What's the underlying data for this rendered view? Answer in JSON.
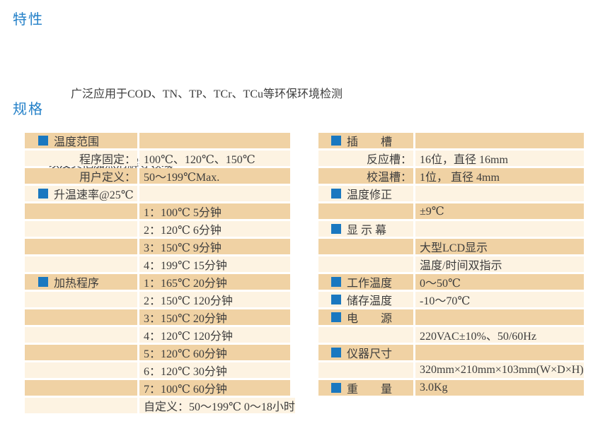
{
  "colors": {
    "row_dark": "#f0d2a4",
    "row_light": "#fdf3e2",
    "bullet_blue": "#1a78c0",
    "heading_blue": "#2380c8",
    "text": "#3d3d3d"
  },
  "features": {
    "title": "特性",
    "lines": [
      "广泛应用于COD、TN、TP、TCr、TCu等环保环境检测",
      "以及其他加热消解等领域"
    ]
  },
  "specs": {
    "title": "规格",
    "left_table": {
      "rows": [
        {
          "kind": "header",
          "label": "温度范围",
          "value": ""
        },
        {
          "kind": "sub",
          "label": "程序固定：",
          "value": "100℃、120℃、150℃"
        },
        {
          "kind": "sub",
          "label": "用户定义：",
          "value": "50～199℃Max."
        },
        {
          "kind": "header",
          "label": "升温速率@25℃",
          "value": ""
        },
        {
          "kind": "plain",
          "label": "",
          "value": "1：100℃ 5分钟"
        },
        {
          "kind": "plain",
          "label": "",
          "value": "2：120℃ 6分钟"
        },
        {
          "kind": "plain",
          "label": "",
          "value": "3：150℃ 9分钟"
        },
        {
          "kind": "plain",
          "label": "",
          "value": "4：199℃ 15分钟"
        },
        {
          "kind": "header",
          "label": "加热程序",
          "value": "1：165℃ 20分钟"
        },
        {
          "kind": "plain",
          "label": "",
          "value": "2：150℃ 120分钟"
        },
        {
          "kind": "plain",
          "label": "",
          "value": "3：150℃ 20分钟"
        },
        {
          "kind": "plain",
          "label": "",
          "value": "4：120℃ 120分钟"
        },
        {
          "kind": "plain",
          "label": "",
          "value": "5：120℃ 60分钟"
        },
        {
          "kind": "plain",
          "label": "",
          "value": "6：120℃ 30分钟"
        },
        {
          "kind": "plain",
          "label": "",
          "value": "7：100℃ 60分钟"
        },
        {
          "kind": "plain",
          "label": "",
          "value": "自定义：50～199℃ 0～18小时"
        }
      ]
    },
    "right_table": {
      "rows": [
        {
          "kind": "header",
          "label": "插　　槽",
          "value": ""
        },
        {
          "kind": "sub",
          "label": "反应槽：",
          "value": "16位，直径 16mm"
        },
        {
          "kind": "sub",
          "label": "校温槽：",
          "value": "1位， 直径 4mm"
        },
        {
          "kind": "header",
          "label": "温度修正",
          "value": ""
        },
        {
          "kind": "plain",
          "label": "",
          "value": "±9℃"
        },
        {
          "kind": "header",
          "label": "显 示 幕",
          "value": ""
        },
        {
          "kind": "plain",
          "label": "",
          "value": "大型LCD显示"
        },
        {
          "kind": "plain",
          "label": "",
          "value": "温度/时间双指示"
        },
        {
          "kind": "header",
          "label": "工作温度",
          "value": "0～50℃"
        },
        {
          "kind": "header",
          "label": "储存温度",
          "value": "-10～70℃"
        },
        {
          "kind": "header",
          "label": "电　　源",
          "value": ""
        },
        {
          "kind": "plain",
          "label": "",
          "value": "220VAC±10%、50/60Hz"
        },
        {
          "kind": "header",
          "label": "仪器尺寸",
          "value": ""
        },
        {
          "kind": "plain",
          "label": "",
          "value": "320mm×210mm×103mm(W×D×H)"
        },
        {
          "kind": "header",
          "label": "重　　量",
          "value": "3.0Kg"
        }
      ]
    }
  }
}
